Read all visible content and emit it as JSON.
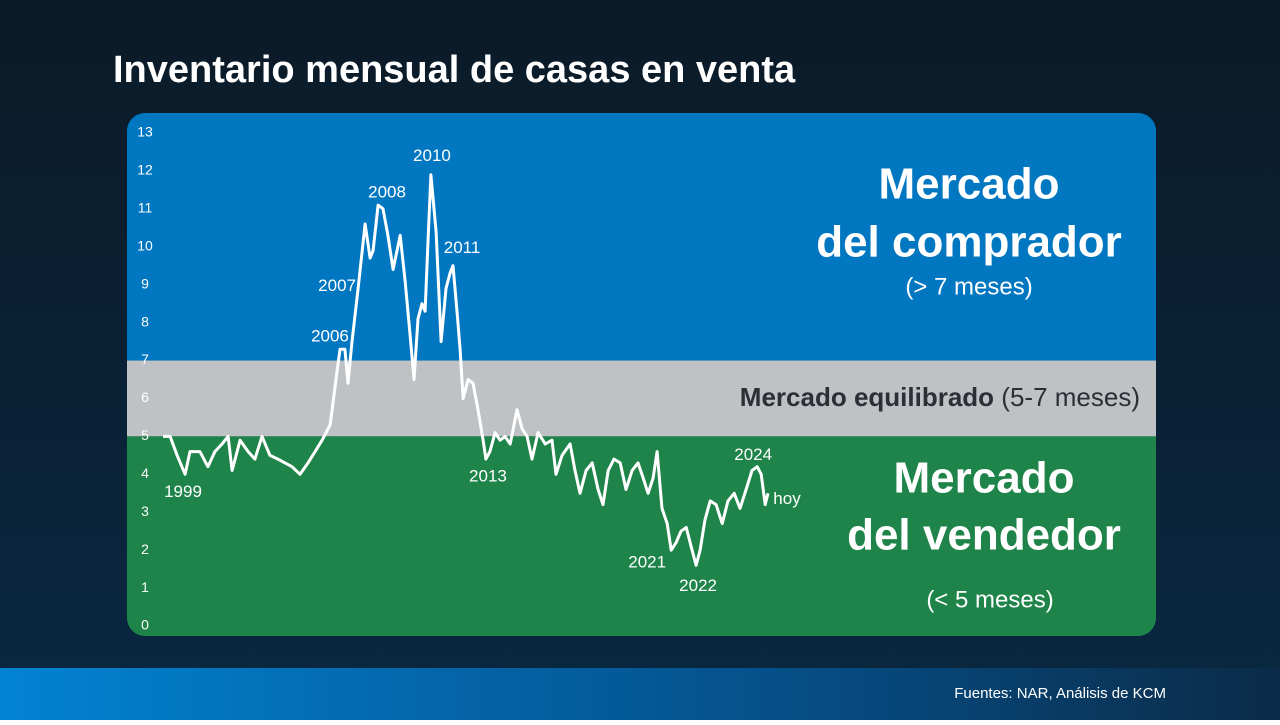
{
  "chart_data": {
    "type": "line",
    "title": "Inventario mensual de casas en venta",
    "color": "#ffffff",
    "x": [
      1999.0,
      1999.3,
      1999.6,
      1999.94,
      2000.15,
      2000.57,
      2000.91,
      2001.21,
      2001.51,
      2001.77,
      2001.94,
      2002.28,
      2002.62,
      2002.91,
      2003.21,
      2003.55,
      2003.89,
      2004.19,
      2004.49,
      2004.83,
      2005.17,
      2005.47,
      2005.77,
      2006.11,
      2006.36,
      2006.53,
      2006.74,
      2006.87,
      2007.04,
      2007.3,
      2007.6,
      2007.81,
      2007.94,
      2008.15,
      2008.36,
      2008.57,
      2008.79,
      2009.09,
      2009.3,
      2009.51,
      2009.68,
      2009.85,
      2010.02,
      2010.15,
      2010.28,
      2010.4,
      2010.62,
      2010.83,
      2011.04,
      2011.21,
      2011.34,
      2011.51,
      2011.64,
      2011.77,
      2011.98,
      2012.19,
      2012.4,
      2012.62,
      2012.74,
      2012.91,
      2013.13,
      2013.34,
      2013.55,
      2013.77,
      2014.06,
      2014.28,
      2014.49,
      2014.7,
      2014.96,
      2015.26,
      2015.55,
      2015.72,
      2015.98,
      2016.32,
      2016.53,
      2016.74,
      2017.0,
      2017.26,
      2017.51,
      2017.72,
      2017.94,
      2018.19,
      2018.45,
      2018.7,
      2018.96,
      2019.21,
      2019.43,
      2019.64,
      2019.85,
      2020.02,
      2020.23,
      2020.45,
      2020.62,
      2020.83,
      2021.04,
      2021.26,
      2021.47,
      2021.68,
      2021.85,
      2022.06,
      2022.28,
      2022.53,
      2022.79,
      2023.04,
      2023.3,
      2023.55,
      2023.81,
      2024.06,
      2024.28,
      2024.45,
      2024.62,
      2024.74
    ],
    "values": [
      5.0,
      5.0,
      4.5,
      4.0,
      4.6,
      4.6,
      4.2,
      4.6,
      4.8,
      5.0,
      4.1,
      4.9,
      4.6,
      4.4,
      5.0,
      4.5,
      4.4,
      4.3,
      4.2,
      4.0,
      4.3,
      4.6,
      4.9,
      5.3,
      6.5,
      7.3,
      7.3,
      6.4,
      7.5,
      8.9,
      10.6,
      9.7,
      9.9,
      11.1,
      11.0,
      10.3,
      9.4,
      10.3,
      9.1,
      7.7,
      6.5,
      8.1,
      8.5,
      8.3,
      10.2,
      11.9,
      10.4,
      7.5,
      8.9,
      9.3,
      9.5,
      8.3,
      7.3,
      6.0,
      6.5,
      6.4,
      5.7,
      4.9,
      4.4,
      4.6,
      5.1,
      4.9,
      5.0,
      4.8,
      5.7,
      5.2,
      5.0,
      4.4,
      5.1,
      4.8,
      4.9,
      4.0,
      4.5,
      4.8,
      4.1,
      3.5,
      4.1,
      4.3,
      3.6,
      3.2,
      4.1,
      4.4,
      4.3,
      3.6,
      4.1,
      4.3,
      3.9,
      3.5,
      3.9,
      4.6,
      3.1,
      2.7,
      2.0,
      2.2,
      2.5,
      2.6,
      2.1,
      1.6,
      2.0,
      2.8,
      3.3,
      3.2,
      2.7,
      3.3,
      3.5,
      3.1,
      3.6,
      4.1,
      4.2,
      4.0,
      3.2,
      3.5
    ],
    "xlim": [
      1999.0,
      2024.74
    ],
    "ylim": [
      0,
      13
    ],
    "yticks": [
      0,
      1,
      2,
      3,
      4,
      5,
      6,
      7,
      8,
      9,
      10,
      11,
      12,
      13
    ],
    "band_edges": [
      5,
      7
    ],
    "band_colors": [
      "#1e8449",
      "#bfc2c4",
      "#0077c0"
    ],
    "annotations": [
      {
        "text": "1999",
        "x": 1999.0,
        "y": 5.0
      },
      {
        "text": "2006",
        "x": 2006.53,
        "y": 7.3
      },
      {
        "text": "2007",
        "x": 2007.3,
        "y": 8.9
      },
      {
        "text": "2008",
        "x": 2008.15,
        "y": 11.1
      },
      {
        "text": "2010",
        "x": 2010.4,
        "y": 11.9
      },
      {
        "text": "2011",
        "x": 2011.34,
        "y": 9.5
      },
      {
        "text": "2013",
        "x": 2012.74,
        "y": 4.4
      },
      {
        "text": "2021",
        "x": 2020.62,
        "y": 2.0
      },
      {
        "text": "2022",
        "x": 2021.68,
        "y": 1.6
      },
      {
        "text": "2024",
        "x": 2024.28,
        "y": 4.2
      },
      {
        "text": "hoy",
        "x": 2024.74,
        "y": 3.5
      }
    ],
    "buyer_title": [
      "Mercado",
      "del comprador"
    ],
    "buyer_note": "(> 7 meses)",
    "balanced_title": "Mercado equilibrado",
    "balanced_note": "(5-7 meses)",
    "seller_title": [
      "Mercado",
      "del vendedor"
    ],
    "seller_note": "(< 5 meses)",
    "source": "Fuentes: NAR, Análisis de KCM"
  }
}
